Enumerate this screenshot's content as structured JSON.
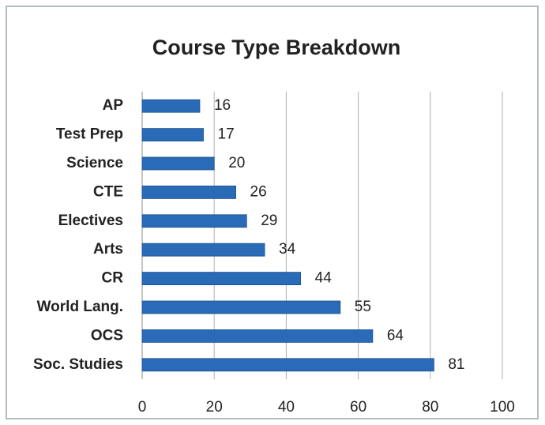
{
  "chart_data": {
    "type": "bar",
    "orientation": "horizontal",
    "title": "Course Type Breakdown",
    "categories": [
      "AP",
      "Test Prep",
      "Science",
      "CTE",
      "Electives",
      "Arts",
      "CR",
      "World Lang.",
      "OCS",
      "Soc. Studies"
    ],
    "values": [
      16,
      17,
      20,
      26,
      29,
      34,
      44,
      55,
      64,
      81
    ],
    "color": "#2a6bb8",
    "xlim": [
      0,
      100
    ],
    "xticks": [
      0,
      20,
      40,
      60,
      80,
      100
    ],
    "grid": true
  }
}
